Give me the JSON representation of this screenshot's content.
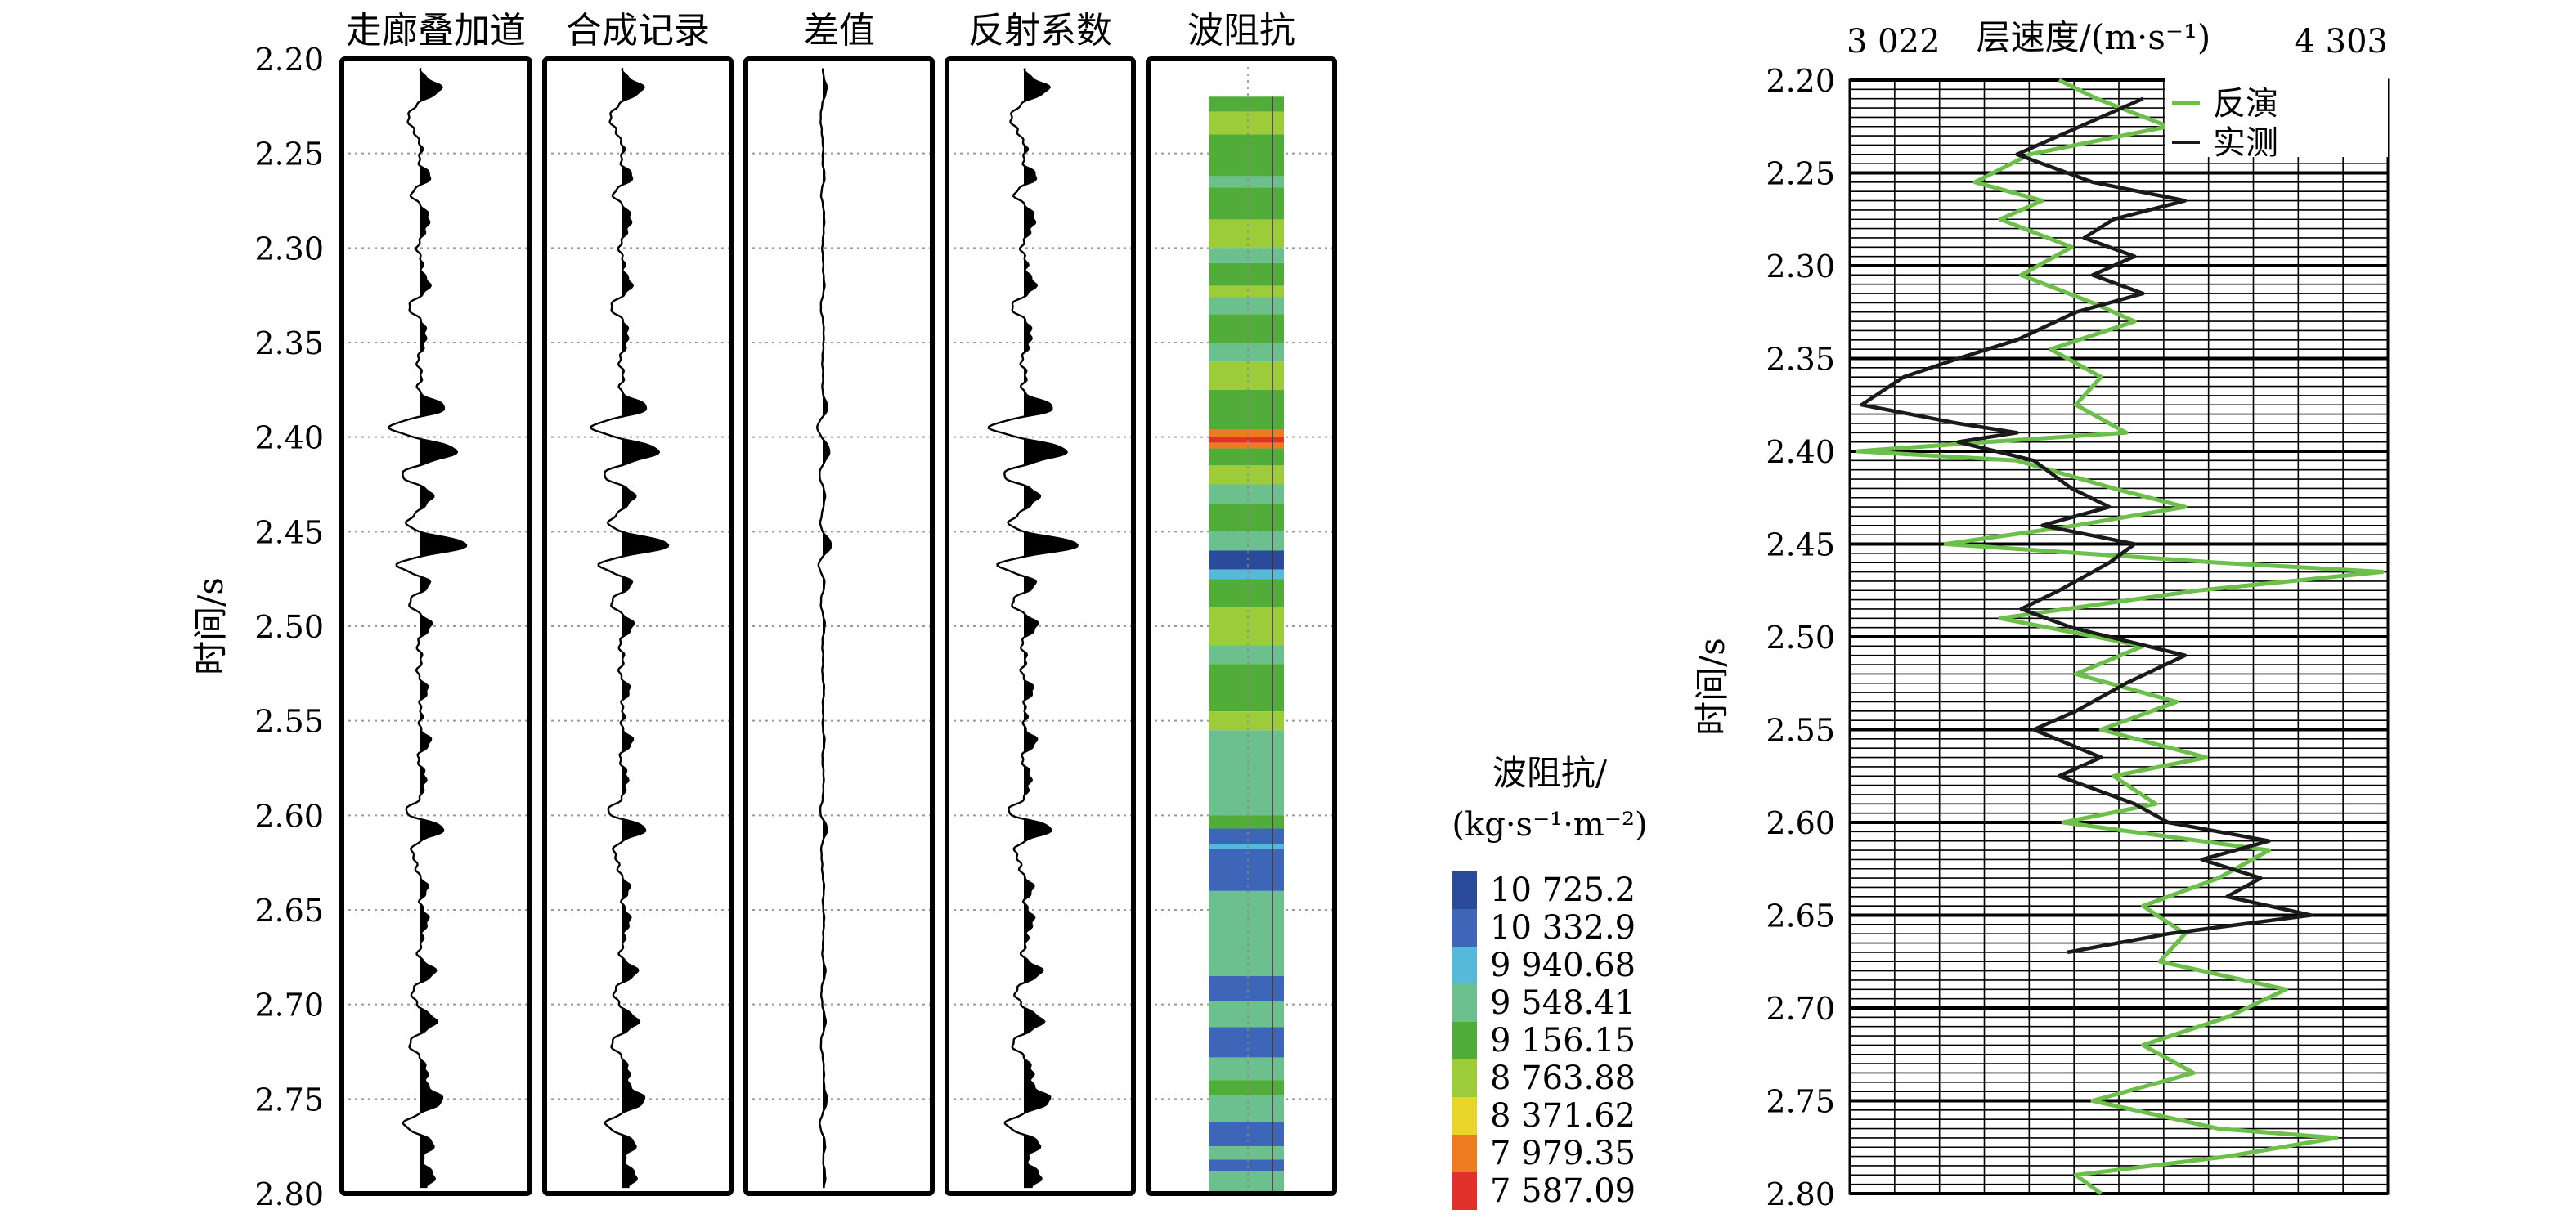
{
  "chart_data": [
    {
      "type": "line",
      "ylabel": "时间/s",
      "ylim": [
        2.2,
        2.8
      ],
      "y_inverted": true,
      "yticks": [
        "2.20",
        "2.25",
        "2.30",
        "2.35",
        "2.40",
        "2.45",
        "2.50",
        "2.55",
        "2.60",
        "2.65",
        "2.70",
        "2.75",
        "2.80"
      ],
      "grid": "horizontal-dotted",
      "panels": [
        {
          "title": "走廊叠加道",
          "kind": "wiggle",
          "amp": 1.0
        },
        {
          "title": "合成记录",
          "kind": "wiggle",
          "amp": 1.0
        },
        {
          "title": "差值",
          "kind": "wiggle",
          "amp": 0.18
        },
        {
          "title": "反射系数",
          "kind": "wiggle",
          "amp": 1.15
        },
        {
          "title": "波阻抗",
          "kind": "impedance"
        }
      ],
      "wavelet_events": [
        {
          "t": 2.215,
          "a": 0.45
        },
        {
          "t": 2.232,
          "a": -0.3
        },
        {
          "t": 2.262,
          "a": 0.2
        },
        {
          "t": 2.272,
          "a": -0.15
        },
        {
          "t": 2.285,
          "a": 0.25
        },
        {
          "t": 2.318,
          "a": 0.22
        },
        {
          "t": 2.332,
          "a": -0.2
        },
        {
          "t": 2.345,
          "a": 0.18
        },
        {
          "t": 2.385,
          "a": 0.55
        },
        {
          "t": 2.395,
          "a": -0.7
        },
        {
          "t": 2.407,
          "a": 0.85
        },
        {
          "t": 2.42,
          "a": -0.35
        },
        {
          "t": 2.432,
          "a": 0.3
        },
        {
          "t": 2.445,
          "a": -0.3
        },
        {
          "t": 2.457,
          "a": 1.0
        },
        {
          "t": 2.468,
          "a": -0.5
        },
        {
          "t": 2.478,
          "a": 0.3
        },
        {
          "t": 2.487,
          "a": -0.3
        },
        {
          "t": 2.498,
          "a": 0.25
        },
        {
          "t": 2.535,
          "a": 0.15
        },
        {
          "t": 2.56,
          "a": 0.2
        },
        {
          "t": 2.583,
          "a": 0.15
        },
        {
          "t": 2.598,
          "a": -0.3
        },
        {
          "t": 2.607,
          "a": 0.5
        },
        {
          "t": 2.62,
          "a": -0.2
        },
        {
          "t": 2.64,
          "a": 0.15
        },
        {
          "t": 2.657,
          "a": 0.2
        },
        {
          "t": 2.683,
          "a": 0.3
        },
        {
          "t": 2.695,
          "a": -0.2
        },
        {
          "t": 2.708,
          "a": 0.35
        },
        {
          "t": 2.722,
          "a": -0.2
        },
        {
          "t": 2.735,
          "a": 0.2
        },
        {
          "t": 2.75,
          "a": 0.55
        },
        {
          "t": 2.763,
          "a": -0.3
        },
        {
          "t": 2.775,
          "a": 0.3
        },
        {
          "t": 2.792,
          "a": 0.35
        }
      ],
      "impedance_layers": [
        {
          "t0": 2.22,
          "t1": 2.228,
          "v": 9156.15
        },
        {
          "t0": 2.228,
          "t1": 2.24,
          "v": 8763.88
        },
        {
          "t0": 2.24,
          "t1": 2.262,
          "v": 9156.15
        },
        {
          "t0": 2.262,
          "t1": 2.268,
          "v": 9548.41
        },
        {
          "t0": 2.268,
          "t1": 2.285,
          "v": 9156.15
        },
        {
          "t0": 2.285,
          "t1": 2.3,
          "v": 8763.88
        },
        {
          "t0": 2.3,
          "t1": 2.308,
          "v": 9548.41
        },
        {
          "t0": 2.308,
          "t1": 2.32,
          "v": 9156.15
        },
        {
          "t0": 2.32,
          "t1": 2.326,
          "v": 8763.88
        },
        {
          "t0": 2.326,
          "t1": 2.335,
          "v": 9548.41
        },
        {
          "t0": 2.335,
          "t1": 2.35,
          "v": 9156.15
        },
        {
          "t0": 2.35,
          "t1": 2.36,
          "v": 9548.41
        },
        {
          "t0": 2.36,
          "t1": 2.375,
          "v": 8763.88
        },
        {
          "t0": 2.375,
          "t1": 2.396,
          "v": 9156.15
        },
        {
          "t0": 2.396,
          "t1": 2.4,
          "v": 7979.35
        },
        {
          "t0": 2.4,
          "t1": 2.403,
          "v": 7587.09
        },
        {
          "t0": 2.403,
          "t1": 2.406,
          "v": 7979.35
        },
        {
          "t0": 2.406,
          "t1": 2.415,
          "v": 9156.15
        },
        {
          "t0": 2.415,
          "t1": 2.425,
          "v": 8763.88
        },
        {
          "t0": 2.425,
          "t1": 2.435,
          "v": 9548.41
        },
        {
          "t0": 2.435,
          "t1": 2.45,
          "v": 9156.15
        },
        {
          "t0": 2.45,
          "t1": 2.46,
          "v": 9548.41
        },
        {
          "t0": 2.46,
          "t1": 2.47,
          "v": 10725.2
        },
        {
          "t0": 2.47,
          "t1": 2.475,
          "v": 9940.68
        },
        {
          "t0": 2.475,
          "t1": 2.49,
          "v": 9156.15
        },
        {
          "t0": 2.49,
          "t1": 2.51,
          "v": 8763.88
        },
        {
          "t0": 2.51,
          "t1": 2.52,
          "v": 9548.41
        },
        {
          "t0": 2.52,
          "t1": 2.545,
          "v": 9156.15
        },
        {
          "t0": 2.545,
          "t1": 2.555,
          "v": 8763.88
        },
        {
          "t0": 2.555,
          "t1": 2.6,
          "v": 9548.41
        },
        {
          "t0": 2.6,
          "t1": 2.607,
          "v": 9156.15
        },
        {
          "t0": 2.607,
          "t1": 2.615,
          "v": 10332.9
        },
        {
          "t0": 2.615,
          "t1": 2.618,
          "v": 9940.68
        },
        {
          "t0": 2.618,
          "t1": 2.64,
          "v": 10332.9
        },
        {
          "t0": 2.64,
          "t1": 2.685,
          "v": 9548.41
        },
        {
          "t0": 2.685,
          "t1": 2.698,
          "v": 10332.9
        },
        {
          "t0": 2.698,
          "t1": 2.712,
          "v": 9548.41
        },
        {
          "t0": 2.712,
          "t1": 2.728,
          "v": 10332.9
        },
        {
          "t0": 2.728,
          "t1": 2.74,
          "v": 9548.41
        },
        {
          "t0": 2.74,
          "t1": 2.748,
          "v": 9156.15
        },
        {
          "t0": 2.748,
          "t1": 2.762,
          "v": 9548.41
        },
        {
          "t0": 2.762,
          "t1": 2.775,
          "v": 10332.9
        },
        {
          "t0": 2.775,
          "t1": 2.782,
          "v": 9548.41
        },
        {
          "t0": 2.782,
          "t1": 2.788,
          "v": 10332.9
        },
        {
          "t0": 2.788,
          "t1": 2.8,
          "v": 9548.41
        }
      ]
    },
    {
      "type": "heatmap",
      "title": "波阻抗/",
      "subtitle": "(kg·s⁻¹·m⁻²)",
      "levels": [
        {
          "value": 10725.2,
          "label": "10 725.2",
          "color": "#2b4a9a"
        },
        {
          "value": 10332.9,
          "label": "10 332.9",
          "color": "#3d66b8"
        },
        {
          "value": 9940.68,
          "label": "9 940.68",
          "color": "#56b9d9"
        },
        {
          "value": 9548.41,
          "label": "9 548.41",
          "color": "#6cc08e"
        },
        {
          "value": 9156.15,
          "label": "9 156.15",
          "color": "#52ac3a"
        },
        {
          "value": 8763.88,
          "label": "8 763.88",
          "color": "#9ccc3a"
        },
        {
          "value": 8371.62,
          "label": "8 371.62",
          "color": "#e8d52a"
        },
        {
          "value": 7979.35,
          "label": "7 979.35",
          "color": "#ee7b22"
        },
        {
          "value": 7587.09,
          "label": "7 587.09",
          "color": "#e0322b"
        }
      ]
    },
    {
      "type": "line",
      "title": "层速度/(m·s⁻¹)",
      "xlim_labels": [
        "3 022",
        "4 303"
      ],
      "xlim": [
        3022,
        4303
      ],
      "ylabel": "时间/s",
      "ylim": [
        2.2,
        2.8
      ],
      "y_inverted": true,
      "yticks": [
        "2.20",
        "2.25",
        "2.30",
        "2.35",
        "2.40",
        "2.45",
        "2.50",
        "2.55",
        "2.60",
        "2.65",
        "2.70",
        "2.75",
        "2.80"
      ],
      "legend_position": "top-right",
      "grid": true,
      "series": [
        {
          "name": "反演",
          "color": "#6cc04a",
          "points": [
            [
              2.2,
              3520
            ],
            [
              2.21,
              3610
            ],
            [
              2.225,
              3780
            ],
            [
              2.24,
              3450
            ],
            [
              2.255,
              3320
            ],
            [
              2.265,
              3480
            ],
            [
              2.275,
              3380
            ],
            [
              2.29,
              3550
            ],
            [
              2.305,
              3430
            ],
            [
              2.32,
              3600
            ],
            [
              2.33,
              3700
            ],
            [
              2.345,
              3500
            ],
            [
              2.36,
              3620
            ],
            [
              2.375,
              3560
            ],
            [
              2.39,
              3680
            ],
            [
              2.395,
              3350
            ],
            [
              2.4,
              3040
            ],
            [
              2.405,
              3420
            ],
            [
              2.42,
              3650
            ],
            [
              2.43,
              3820
            ],
            [
              2.44,
              3560
            ],
            [
              2.45,
              3250
            ],
            [
              2.46,
              3900
            ],
            [
              2.465,
              4290
            ],
            [
              2.475,
              3850
            ],
            [
              2.49,
              3380
            ],
            [
              2.505,
              3720
            ],
            [
              2.52,
              3560
            ],
            [
              2.535,
              3800
            ],
            [
              2.55,
              3620
            ],
            [
              2.565,
              3870
            ],
            [
              2.575,
              3650
            ],
            [
              2.59,
              3750
            ],
            [
              2.6,
              3530
            ],
            [
              2.615,
              4020
            ],
            [
              2.63,
              3900
            ],
            [
              2.645,
              3720
            ],
            [
              2.66,
              3820
            ],
            [
              2.675,
              3760
            ],
            [
              2.69,
              4060
            ],
            [
              2.705,
              3920
            ],
            [
              2.72,
              3720
            ],
            [
              2.735,
              3840
            ],
            [
              2.75,
              3600
            ],
            [
              2.765,
              3900
            ],
            [
              2.77,
              4180
            ],
            [
              2.78,
              3920
            ],
            [
              2.79,
              3560
            ],
            [
              2.8,
              3620
            ]
          ]
        },
        {
          "name": "实测",
          "color": "#1a1a1a",
          "points": [
            [
              2.21,
              3720
            ],
            [
              2.225,
              3570
            ],
            [
              2.24,
              3420
            ],
            [
              2.255,
              3600
            ],
            [
              2.265,
              3820
            ],
            [
              2.275,
              3650
            ],
            [
              2.285,
              3580
            ],
            [
              2.295,
              3700
            ],
            [
              2.305,
              3600
            ],
            [
              2.315,
              3720
            ],
            [
              2.325,
              3560
            ],
            [
              2.34,
              3420
            ],
            [
              2.35,
              3280
            ],
            [
              2.36,
              3150
            ],
            [
              2.375,
              3050
            ],
            [
              2.385,
              3280
            ],
            [
              2.39,
              3420
            ],
            [
              2.395,
              3280
            ],
            [
              2.405,
              3460
            ],
            [
              2.42,
              3550
            ],
            [
              2.43,
              3640
            ],
            [
              2.44,
              3480
            ],
            [
              2.45,
              3700
            ],
            [
              2.46,
              3640
            ],
            [
              2.475,
              3520
            ],
            [
              2.485,
              3430
            ],
            [
              2.495,
              3550
            ],
            [
              2.51,
              3820
            ],
            [
              2.525,
              3680
            ],
            [
              2.54,
              3560
            ],
            [
              2.55,
              3460
            ],
            [
              2.565,
              3620
            ],
            [
              2.575,
              3520
            ],
            [
              2.59,
              3700
            ],
            [
              2.6,
              3780
            ],
            [
              2.61,
              4020
            ],
            [
              2.62,
              3860
            ],
            [
              2.63,
              4000
            ],
            [
              2.64,
              3920
            ],
            [
              2.65,
              4120
            ],
            [
              2.66,
              3780
            ],
            [
              2.67,
              3540
            ]
          ]
        }
      ]
    }
  ]
}
